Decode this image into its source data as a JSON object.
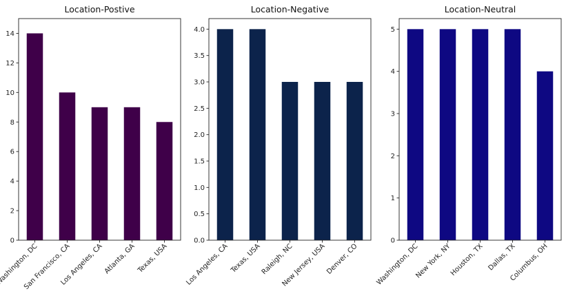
{
  "chart_data": [
    {
      "type": "bar",
      "title": "Location-Postive",
      "categories": [
        "Washington, DC",
        "San Francisco, CA",
        "Los Angeles, CA",
        "Atlanta, GA",
        "Texas, USA"
      ],
      "values": [
        14,
        10,
        9,
        9,
        8
      ],
      "ylim": [
        0,
        15
      ],
      "yticks": [
        "0",
        "2",
        "4",
        "6",
        "8",
        "10",
        "12",
        "14"
      ],
      "color": "#3f0049",
      "grid": false,
      "xlabel": "",
      "ylabel": ""
    },
    {
      "type": "bar",
      "title": "Location-Negative",
      "categories": [
        "Los Angeles, CA",
        "Texas, USA",
        "Raleigh, NC",
        "New Jersey, USA",
        "Denver, CO"
      ],
      "values": [
        4,
        4,
        3,
        3,
        3
      ],
      "ylim": [
        0,
        4.2
      ],
      "yticks": [
        "0.0",
        "0.5",
        "1.0",
        "1.5",
        "2.0",
        "2.5",
        "3.0",
        "3.5",
        "4.0"
      ],
      "color": "#0c234b",
      "grid": false,
      "xlabel": "",
      "ylabel": ""
    },
    {
      "type": "bar",
      "title": "Location-Neutral",
      "categories": [
        "Washington, DC",
        "New York, NY",
        "Houston, TX",
        "Dallas, TX",
        "Columbus, OH"
      ],
      "values": [
        5,
        5,
        5,
        5,
        4
      ],
      "ylim": [
        0,
        5.25
      ],
      "yticks": [
        "0",
        "1",
        "2",
        "3",
        "4",
        "5"
      ],
      "color": "#0e0882",
      "grid": false,
      "xlabel": "",
      "ylabel": ""
    }
  ]
}
